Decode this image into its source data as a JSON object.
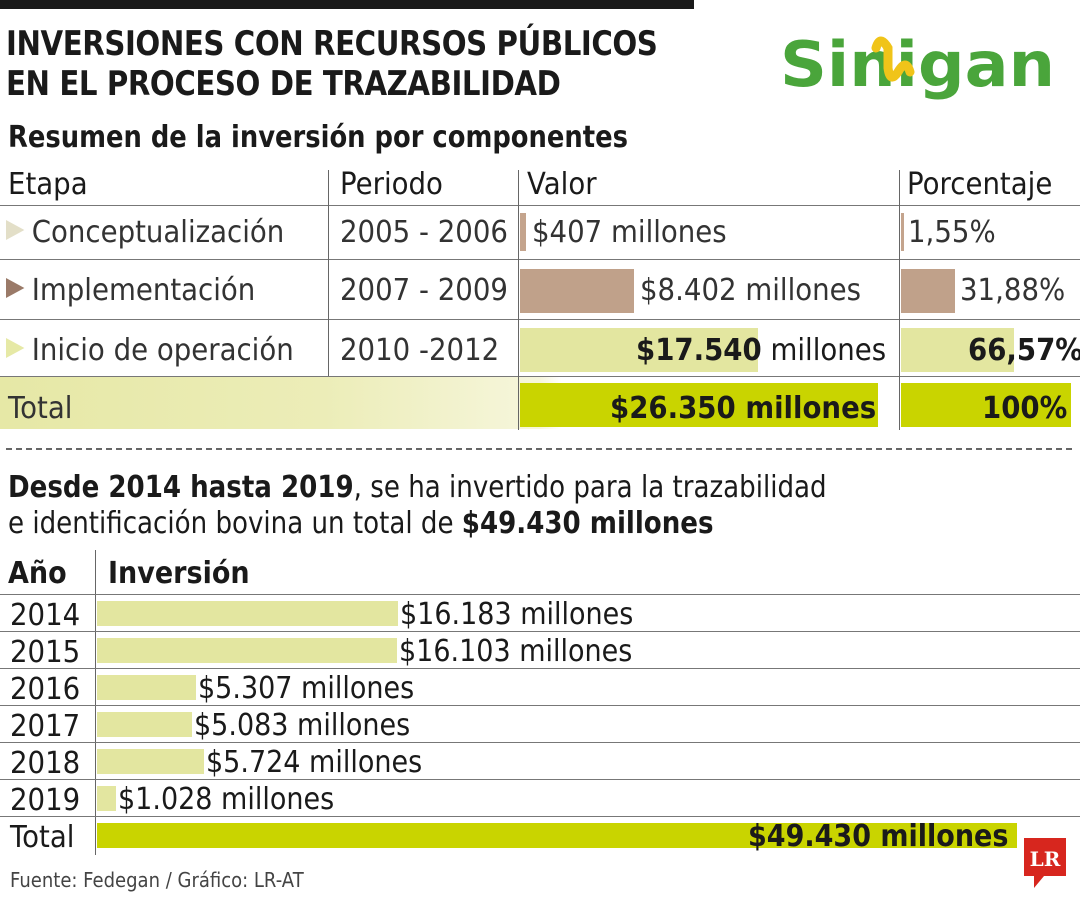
{
  "title_line1": "INVERSIONES CON RECURSOS PÚBLICOS",
  "title_line2": "EN EL PROCESO DE TRAZABILIDAD",
  "logo_text": "Sinigan",
  "table1": {
    "subtitle": "Resumen de la inversión por componentes",
    "headers": {
      "etapa": "Etapa",
      "periodo": "Periodo",
      "valor": "Valor",
      "porcentaje": "Porcentaje"
    },
    "rows": [
      {
        "etapa": "Conceptualización",
        "periodo": "2005 - 2006",
        "valor": "$407 millones",
        "valor_millions": 407,
        "porcentaje": "1,55%",
        "percent": 1.55,
        "color": "#c4a48d"
      },
      {
        "etapa": "Implementación",
        "periodo": "2007 - 2009",
        "valor": "$8.402 millones",
        "valor_millions": 8402,
        "porcentaje": "31,88%",
        "percent": 31.88,
        "color": "#c0a18a"
      },
      {
        "etapa": "Inicio de operación",
        "periodo": "2010 -2012",
        "valor_num": "$17.540",
        "valor_unit": " millones",
        "valor_millions": 17540,
        "porcentaje": "66,57%",
        "percent": 66.57,
        "color": "#e3e6a0"
      }
    ],
    "total": {
      "label": "Total",
      "valor": "$26.350 millones",
      "valor_millions": 26350,
      "porcentaje": "100%",
      "percent": 100,
      "color": "#c9d400"
    }
  },
  "description": {
    "bold_part": "Desde 2014 hasta 2019",
    "normal_part": ", se ha invertido para la trazabilidad",
    "line2_normal": "e identificación bovina un total de ",
    "line2_bold": "$49.430 millones"
  },
  "chart_data": {
    "type": "bar",
    "orientation": "horizontal",
    "headers": {
      "year": "Año",
      "value": "Inversión"
    },
    "categories": [
      "2014",
      "2015",
      "2016",
      "2017",
      "2018",
      "2019"
    ],
    "values": [
      16183,
      16103,
      5307,
      5083,
      5724,
      1028
    ],
    "labels": [
      "$16.183 millones",
      "$16.103 millones",
      "$5.307 millones",
      "$5.083 millones",
      "$5.724 millones",
      "$1.028 millones"
    ],
    "total": {
      "label": "Total",
      "value": 49430,
      "text": "$49.430 millones"
    },
    "bar_color": "#e3e6a0",
    "total_color": "#c9d400"
  },
  "source": "Fuente: Fedegan / Gráfico: LR-AT",
  "publisher": "LR"
}
